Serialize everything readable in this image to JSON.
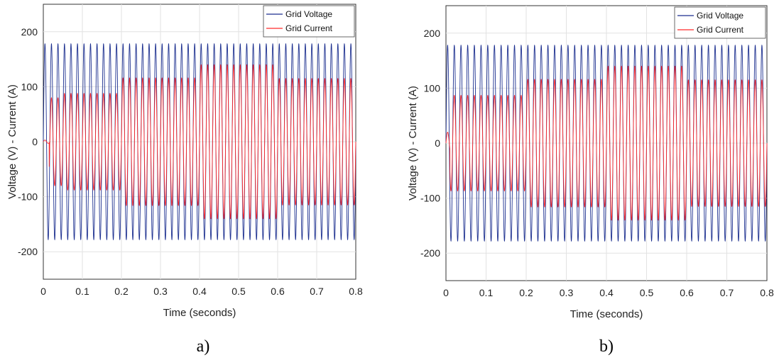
{
  "colors": {
    "voltage": "#1c2f8f",
    "current": "#ff2a2a",
    "grid": "#e2e2e2",
    "axes": "#333333"
  },
  "chart_data": [
    {
      "type": "line",
      "panel_label": "a)",
      "xlabel": "Time (seconds)",
      "ylabel": "Voltage (V)  -  Current (A)",
      "xlim": [
        0,
        0.8
      ],
      "ylim": [
        -250,
        250
      ],
      "xticks": [
        "0",
        "0.1",
        "0.2",
        "0.3",
        "0.4",
        "0.5",
        "0.6",
        "0.7",
        "0.8"
      ],
      "yticks": [
        "200",
        "100",
        "0",
        "-100",
        "-200"
      ],
      "grid": true,
      "legend_position": "top-right",
      "series": [
        {
          "name": "Grid Voltage",
          "waveform": "sinusoid",
          "frequency_hz": 60,
          "amplitude_segments": [
            {
              "t_start": 0.0,
              "t_end": 0.8,
              "amplitude": 178
            }
          ]
        },
        {
          "name": "Grid Current",
          "waveform": "sinusoid",
          "frequency_hz": 60,
          "startup": {
            "t_start": 0.0,
            "t_end": 0.015,
            "amplitude": 3
          },
          "amplitude_segments": [
            {
              "t_start": 0.015,
              "t_end": 0.05,
              "amplitude": 80
            },
            {
              "t_start": 0.05,
              "t_end": 0.2,
              "amplitude": 88
            },
            {
              "t_start": 0.2,
              "t_end": 0.4,
              "amplitude": 116
            },
            {
              "t_start": 0.4,
              "t_end": 0.6,
              "amplitude": 140
            },
            {
              "t_start": 0.6,
              "t_end": 0.8,
              "amplitude": 115
            }
          ]
        }
      ]
    },
    {
      "type": "line",
      "panel_label": "b)",
      "xlabel": "Time (seconds)",
      "ylabel": "Voltage (V)  -  Current (A)",
      "xlim": [
        0,
        0.8
      ],
      "ylim": [
        -250,
        250
      ],
      "xticks": [
        "0",
        "0.1",
        "0.2",
        "0.3",
        "0.4",
        "0.5",
        "0.6",
        "0.7",
        "0.8"
      ],
      "yticks": [
        "200",
        "100",
        "0",
        "-100",
        "-200"
      ],
      "grid": true,
      "legend_position": "top-right",
      "series": [
        {
          "name": "Grid Voltage",
          "waveform": "sinusoid",
          "frequency_hz": 60,
          "amplitude_segments": [
            {
              "t_start": 0.0,
              "t_end": 0.8,
              "amplitude": 178
            }
          ]
        },
        {
          "name": "Grid Current",
          "waveform": "sinusoid",
          "frequency_hz": 60,
          "startup": {
            "t_start": 0.0,
            "t_end": 0.01,
            "amplitude": 20
          },
          "amplitude_segments": [
            {
              "t_start": 0.01,
              "t_end": 0.2,
              "amplitude": 87
            },
            {
              "t_start": 0.2,
              "t_end": 0.4,
              "amplitude": 116
            },
            {
              "t_start": 0.4,
              "t_end": 0.6,
              "amplitude": 140
            },
            {
              "t_start": 0.6,
              "t_end": 0.8,
              "amplitude": 115
            }
          ]
        }
      ]
    }
  ]
}
